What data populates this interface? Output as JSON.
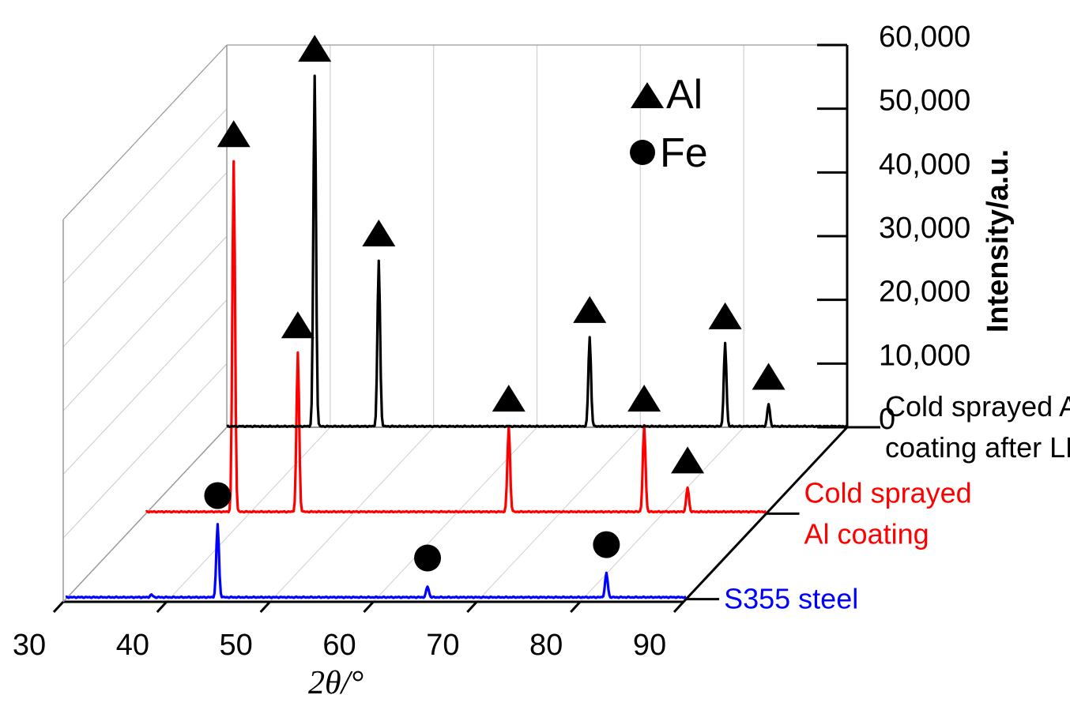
{
  "chart_data": {
    "type": "line",
    "subtype": "3d-waterfall",
    "title": "",
    "xlabel": "2θ/°",
    "ylabel": "Intensity/a.u.",
    "xlim": [
      30,
      90
    ],
    "ylim": [
      0,
      60000
    ],
    "x_ticks": [
      "30",
      "40",
      "50",
      "60",
      "70",
      "80",
      "90"
    ],
    "y_ticks": [
      "0",
      "10,000",
      "20,000",
      "30,000",
      "40,000",
      "50,000",
      "60,000"
    ],
    "legend": [
      {
        "marker": "triangle",
        "label": "Al"
      },
      {
        "marker": "circle",
        "label": "Fe"
      }
    ],
    "series": [
      {
        "name": "S355 steel",
        "label_lines": [
          "S355 steel"
        ],
        "color": "#0000ff",
        "depth": 0,
        "baseline": 300,
        "peaks": [
          {
            "x": 38.3,
            "y": 400,
            "marker": ""
          },
          {
            "x": 44.7,
            "y": 11500,
            "marker": "circle"
          },
          {
            "x": 65.0,
            "y": 1700,
            "marker": "circle"
          },
          {
            "x": 82.3,
            "y": 3800,
            "marker": "circle"
          }
        ]
      },
      {
        "name": "Cold sprayed Al coating",
        "label_lines": [
          "Cold sprayed",
          "Al coating"
        ],
        "color": "#ff0000",
        "depth": 1,
        "baseline": 300,
        "peaks": [
          {
            "x": 38.5,
            "y": 55000,
            "marker": "triangle"
          },
          {
            "x": 44.7,
            "y": 25000,
            "marker": "triangle"
          },
          {
            "x": 65.1,
            "y": 13500,
            "marker": "triangle"
          },
          {
            "x": 78.2,
            "y": 13500,
            "marker": "triangle"
          },
          {
            "x": 82.4,
            "y": 3800,
            "marker": "triangle"
          }
        ]
      },
      {
        "name": "Cold sprayed Al coating after LR",
        "label_lines": [
          "Cold sprayed Al",
          "coating after LR"
        ],
        "color": "#000000",
        "depth": 2,
        "baseline": 150,
        "peaks": [
          {
            "x": 38.5,
            "y": 55000,
            "marker": "triangle"
          },
          {
            "x": 44.7,
            "y": 26000,
            "marker": "triangle"
          },
          {
            "x": 65.1,
            "y": 14000,
            "marker": "triangle"
          },
          {
            "x": 78.2,
            "y": 13000,
            "marker": "triangle"
          },
          {
            "x": 82.4,
            "y": 3500,
            "marker": "triangle"
          }
        ]
      }
    ]
  }
}
